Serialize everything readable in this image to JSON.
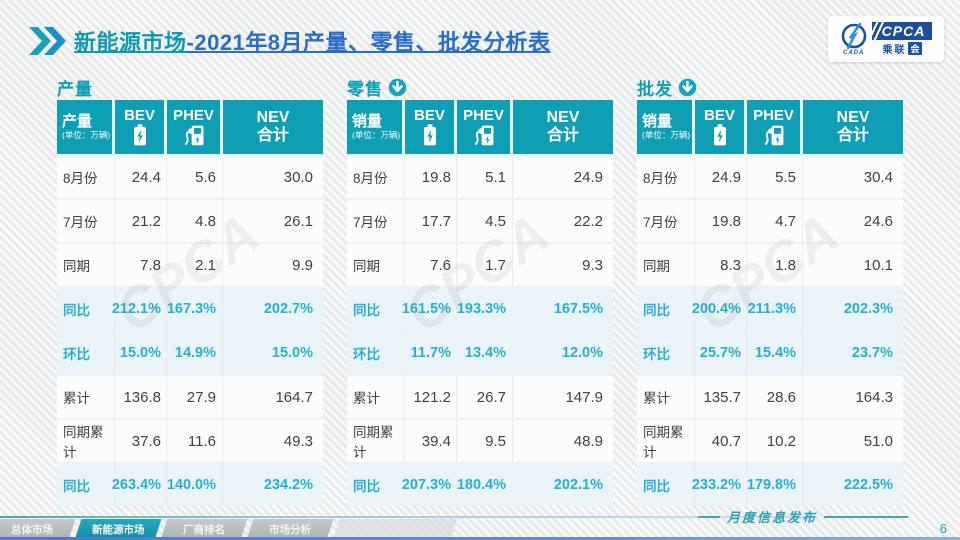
{
  "header": {
    "title_primary": "新能源市场",
    "title_secondary": "-2021年8月产量、零售、批发分析表",
    "logo": {
      "cpca": "CPCA",
      "cada": "CADA",
      "sub_prefix": "乘联",
      "sub_boxed": "会"
    }
  },
  "table_columns": {
    "bev": "BEV",
    "phev": "PHEV",
    "nev_line1": "NEV",
    "nev_line2": "合计"
  },
  "watermark": "CPCA",
  "tables": [
    {
      "id": "production",
      "section_title": "产量",
      "arrow": false,
      "corner_label": "产量",
      "corner_unit": "(单位：万辆)",
      "rows": [
        {
          "label": "8月份",
          "values": [
            "24.4",
            "5.6",
            "30.0"
          ],
          "pct": false
        },
        {
          "label": "7月份",
          "values": [
            "21.2",
            "4.8",
            "26.1"
          ],
          "pct": false
        },
        {
          "label": "同期",
          "values": [
            "7.8",
            "2.1",
            "9.9"
          ],
          "pct": false
        },
        {
          "label": "同比",
          "values": [
            "212.1%",
            "167.3%",
            "202.7%"
          ],
          "pct": true
        },
        {
          "label": "环比",
          "values": [
            "15.0%",
            "14.9%",
            "15.0%"
          ],
          "pct": true
        },
        {
          "label": "累计",
          "values": [
            "136.8",
            "27.9",
            "164.7"
          ],
          "pct": false
        },
        {
          "label": "同期累计",
          "values": [
            "37.6",
            "11.6",
            "49.3"
          ],
          "pct": false
        },
        {
          "label": "同比",
          "values": [
            "263.4%",
            "140.0%",
            "234.2%"
          ],
          "pct": true
        }
      ]
    },
    {
      "id": "retail",
      "section_title": "零售",
      "arrow": true,
      "corner_label": "销量",
      "corner_unit": "(单位：万辆)",
      "rows": [
        {
          "label": "8月份",
          "values": [
            "19.8",
            "5.1",
            "24.9"
          ],
          "pct": false
        },
        {
          "label": "7月份",
          "values": [
            "17.7",
            "4.5",
            "22.2"
          ],
          "pct": false
        },
        {
          "label": "同期",
          "values": [
            "7.6",
            "1.7",
            "9.3"
          ],
          "pct": false
        },
        {
          "label": "同比",
          "values": [
            "161.5%",
            "193.3%",
            "167.5%"
          ],
          "pct": true
        },
        {
          "label": "环比",
          "values": [
            "11.7%",
            "13.4%",
            "12.0%"
          ],
          "pct": true
        },
        {
          "label": "累计",
          "values": [
            "121.2",
            "26.7",
            "147.9"
          ],
          "pct": false
        },
        {
          "label": "同期累计",
          "values": [
            "39.4",
            "9.5",
            "48.9"
          ],
          "pct": false
        },
        {
          "label": "同比",
          "values": [
            "207.3%",
            "180.4%",
            "202.1%"
          ],
          "pct": true
        }
      ]
    },
    {
      "id": "wholesale",
      "section_title": "批发",
      "arrow": true,
      "corner_label": "销量",
      "corner_unit": "(单位：万辆)",
      "rows": [
        {
          "label": "8月份",
          "values": [
            "24.9",
            "5.5",
            "30.4"
          ],
          "pct": false
        },
        {
          "label": "7月份",
          "values": [
            "19.8",
            "4.7",
            "24.6"
          ],
          "pct": false
        },
        {
          "label": "同期",
          "values": [
            "8.3",
            "1.8",
            "10.1"
          ],
          "pct": false
        },
        {
          "label": "同比",
          "values": [
            "200.4%",
            "211.3%",
            "202.3%"
          ],
          "pct": true
        },
        {
          "label": "环比",
          "values": [
            "25.7%",
            "15.4%",
            "23.7%"
          ],
          "pct": true
        },
        {
          "label": "累计",
          "values": [
            "135.7",
            "28.6",
            "164.3"
          ],
          "pct": false
        },
        {
          "label": "同期累计",
          "values": [
            "40.7",
            "10.2",
            "51.0"
          ],
          "pct": false
        },
        {
          "label": "同比",
          "values": [
            "233.2%",
            "179.8%",
            "222.5%"
          ],
          "pct": true
        }
      ]
    }
  ],
  "footer": {
    "tabs": [
      {
        "label": "总体市场",
        "active": false
      },
      {
        "label": "新能源市场",
        "active": true
      },
      {
        "label": "厂商排名",
        "active": false
      },
      {
        "label": "市场分析",
        "active": false
      }
    ],
    "publication": "月度信息发布",
    "page_number": "6"
  },
  "colors": {
    "accent_teal": "#0f9fb5",
    "title_blue": "#2a6dc9",
    "percent_text": "#29b0cb",
    "logo_blue": "#1d4f9e",
    "row_highlight_bg": "#e9f3f8"
  }
}
